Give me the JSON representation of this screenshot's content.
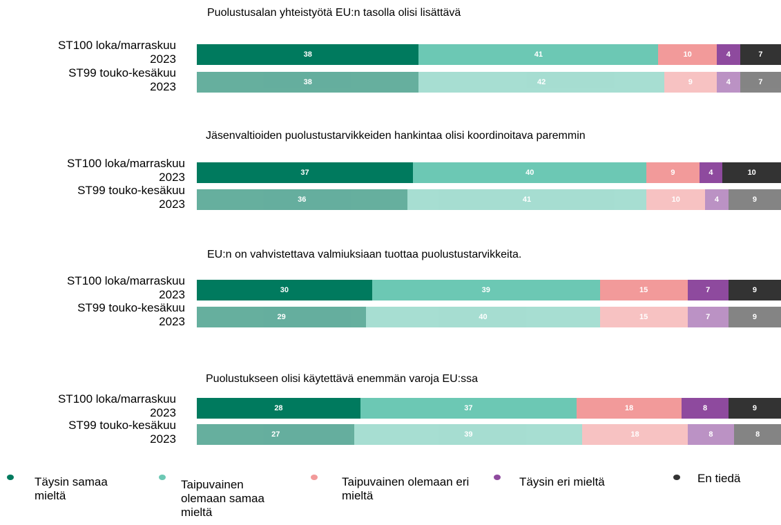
{
  "chart_data": [
    {
      "type": "bar",
      "orientation": "horizontal",
      "stacked": true,
      "title": "Puolustusalan yhteistyötä EU:n tasolla olisi lisättävä",
      "categories": [
        "ST100 loka/marraskuu 2023",
        "ST99 touko-kesäkuu 2023"
      ],
      "series": [
        {
          "values": [
            38,
            38
          ]
        },
        {
          "values": [
            41,
            42
          ]
        },
        {
          "values": [
            10,
            9
          ]
        },
        {
          "values": [
            4,
            4
          ]
        },
        {
          "values": [
            7,
            7
          ]
        }
      ]
    },
    {
      "type": "bar",
      "orientation": "horizontal",
      "stacked": true,
      "title": "Jäsenvaltioiden puolustustarvikkeiden hankintaa olisi koordinoitava paremmin",
      "categories": [
        "ST100 loka/marraskuu 2023",
        "ST99 touko-kesäkuu 2023"
      ],
      "series": [
        {
          "values": [
            37,
            36
          ]
        },
        {
          "values": [
            40,
            41
          ]
        },
        {
          "values": [
            9,
            10
          ]
        },
        {
          "values": [
            4,
            4
          ]
        },
        {
          "values": [
            10,
            9
          ]
        }
      ]
    },
    {
      "type": "bar",
      "orientation": "horizontal",
      "stacked": true,
      "title": "EU:n on vahvistettava valmiuksiaan tuottaa puolustustarvikkeita.",
      "categories": [
        "ST100 loka/marraskuu 2023",
        "ST99 touko-kesäkuu 2023"
      ],
      "series": [
        {
          "values": [
            30,
            29
          ]
        },
        {
          "values": [
            39,
            40
          ]
        },
        {
          "values": [
            15,
            15
          ]
        },
        {
          "values": [
            7,
            7
          ]
        },
        {
          "values": [
            9,
            9
          ]
        }
      ]
    },
    {
      "type": "bar",
      "orientation": "horizontal",
      "stacked": true,
      "title": "Puolustukseen olisi käytettävä enemmän varoja EU:ssa",
      "categories": [
        "ST100 loka/marraskuu 2023",
        "ST99 touko-kesäkuu 2023"
      ],
      "series": [
        {
          "values": [
            28,
            27
          ]
        },
        {
          "values": [
            37,
            39
          ]
        },
        {
          "values": [
            18,
            18
          ]
        },
        {
          "values": [
            8,
            8
          ]
        },
        {
          "values": [
            9,
            8
          ]
        }
      ]
    }
  ],
  "legend": {
    "items": [
      {
        "name": "Täysin samaa mieltä",
        "color": "#007a5e"
      },
      {
        "name": "Taipuvainen olemaan samaa mieltä",
        "color": "#6cc8b4"
      },
      {
        "name": "Taipuvainen olemaan eri mieltä",
        "color": "#f29a9a"
      },
      {
        "name": "Täysin eri mieltä",
        "color": "#8e4a9e"
      },
      {
        "name": "En tiedä",
        "color": "#333333"
      }
    ]
  }
}
